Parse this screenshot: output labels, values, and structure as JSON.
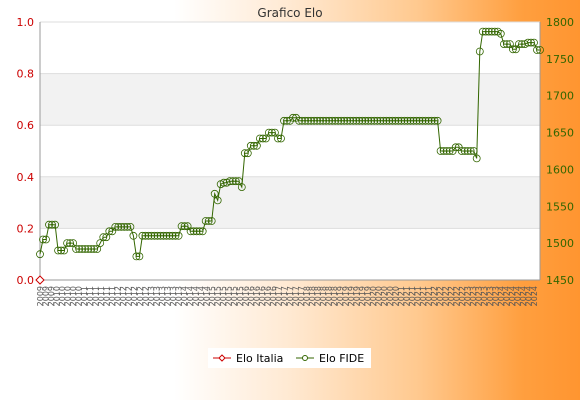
{
  "chart_data": {
    "type": "line",
    "title": "Grafico Elo",
    "xlabel": "",
    "y_left": {
      "label": "",
      "lim": [
        0.0,
        1.0
      ],
      "ticks": [
        0.0,
        0.2,
        0.4,
        0.6,
        0.8,
        1.0
      ],
      "color": "#cc0000"
    },
    "y_right": {
      "label": "",
      "lim": [
        1450,
        1800
      ],
      "ticks": [
        1450,
        1500,
        1550,
        1600,
        1650,
        1700,
        1750,
        1800
      ],
      "color": "#336600"
    },
    "grid": "horizontal",
    "legend_position": "bottom-center",
    "series": [
      {
        "name": "Elo Italia",
        "axis": "left",
        "color": "#cc0000",
        "marker": "diamond",
        "values": [
          0.0
        ]
      },
      {
        "name": "Elo FIDE",
        "axis": "right",
        "color": "#336600",
        "marker": "circle",
        "values": [
          1485,
          1505,
          1505,
          1525,
          1525,
          1525,
          1490,
          1490,
          1490,
          1500,
          1500,
          1500,
          1492,
          1492,
          1492,
          1492,
          1492,
          1492,
          1492,
          1492,
          1500,
          1508,
          1508,
          1516,
          1516,
          1522,
          1522,
          1522,
          1522,
          1522,
          1522,
          1510,
          1482,
          1482,
          1510,
          1510,
          1510,
          1510,
          1510,
          1510,
          1510,
          1510,
          1510,
          1510,
          1510,
          1510,
          1510,
          1523,
          1523,
          1523,
          1516,
          1516,
          1516,
          1516,
          1516,
          1530,
          1530,
          1530,
          1567,
          1558,
          1580,
          1582,
          1582,
          1584,
          1584,
          1584,
          1584,
          1576,
          1622,
          1622,
          1632,
          1632,
          1632,
          1642,
          1642,
          1642,
          1650,
          1650,
          1650,
          1642,
          1642,
          1666,
          1666,
          1666,
          1670,
          1670,
          1666,
          1666,
          1666,
          1666,
          1666,
          1666,
          1666,
          1666,
          1666,
          1666,
          1666,
          1666,
          1666,
          1666,
          1666,
          1666,
          1666,
          1666,
          1666,
          1666,
          1666,
          1666,
          1666,
          1666,
          1666,
          1666,
          1666,
          1666,
          1666,
          1666,
          1666,
          1666,
          1666,
          1666,
          1666,
          1666,
          1666,
          1666,
          1666,
          1666,
          1666,
          1666,
          1666,
          1666,
          1666,
          1666,
          1666,
          1625,
          1625,
          1625,
          1625,
          1625,
          1630,
          1630,
          1625,
          1625,
          1625,
          1625,
          1625,
          1615,
          1760,
          1787,
          1787,
          1787,
          1787,
          1787,
          1787,
          1784,
          1770,
          1770,
          1770,
          1763,
          1763,
          1770,
          1770,
          1770,
          1772,
          1772,
          1772,
          1762,
          1762
        ]
      }
    ],
    "x_ticks": [
      "2009",
      "2009",
      "2009",
      "2010",
      "2010",
      "2010",
      "2010",
      "2010",
      "2011",
      "2011",
      "2011",
      "2011",
      "2011",
      "2011",
      "2012",
      "2012",
      "2012",
      "2012",
      "2012",
      "2012",
      "2013",
      "2013",
      "2013",
      "2013",
      "2013",
      "2013",
      "2014",
      "2014",
      "2014",
      "2014",
      "2014",
      "2015",
      "2015",
      "2015",
      "2015",
      "2015",
      "2015",
      "2016",
      "2016",
      "2016",
      "2016",
      "2016",
      "2016",
      "2017",
      "2017",
      "2017",
      "2017",
      "2017",
      "2018",
      "2018",
      "2018",
      "2018",
      "2018",
      "2018",
      "2019",
      "2019",
      "2019",
      "2019",
      "2019",
      "2019",
      "2020",
      "2020",
      "2020",
      "2020",
      "2020",
      "2021",
      "2021",
      "2021",
      "2021",
      "2021",
      "2021",
      "2022",
      "2022",
      "2022",
      "2022",
      "2022",
      "2022",
      "2023",
      "2023",
      "2023",
      "2023",
      "2023",
      "2023",
      "2024",
      "2024",
      "2024",
      "2024",
      "2024",
      "2024",
      "2024"
    ]
  }
}
